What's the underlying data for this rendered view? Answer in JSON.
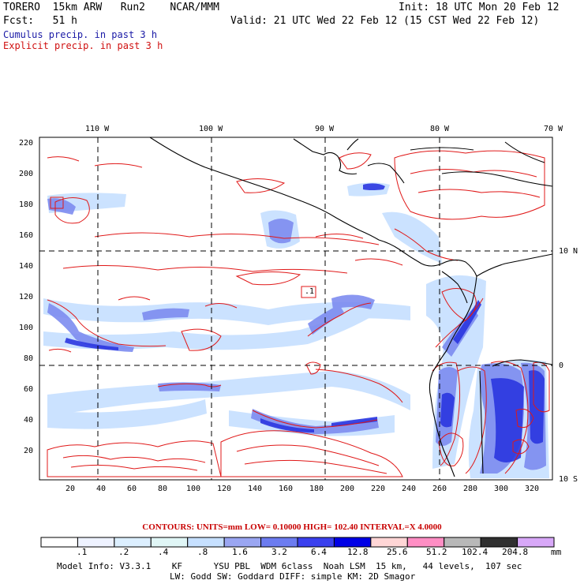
{
  "header": {
    "model_name": "TORERO  15km ARW   Run2    NCAR/MMM",
    "init_label": "Init: 18 UTC Mon 20 Feb 12",
    "forecast_label": "Fcst:   51 h",
    "valid_label": "Valid: 21 UTC Wed 22 Feb 12 (15 CST Wed 22 Feb 12)",
    "cumulus_legend": "Cumulus precip. in past 3 h",
    "explicit_legend": "Explicit precip. in past 3 h"
  },
  "map": {
    "top_lon_labels": [
      "110 W",
      "100 W",
      "90 W",
      "80 W",
      "70 W"
    ],
    "right_lat_labels": [
      "10 N",
      "0",
      "10 S"
    ],
    "left_grid_labels": [
      "220",
      "200",
      "180",
      "160",
      "140",
      "120",
      "100",
      "80",
      "60",
      "40",
      "20"
    ],
    "bottom_grid_labels": [
      "20",
      "40",
      "60",
      "80",
      "100",
      "120",
      "140",
      "160",
      "180",
      "200",
      "220",
      "240",
      "260",
      "280",
      "300",
      "320"
    ],
    "marker_label": ".1",
    "colors": {
      "precip_light": "#c9e1ff",
      "precip_mid": "#7d8cf0",
      "precip_heavy": "#2b36e0",
      "contour": "#e01818",
      "coast": "#000000"
    }
  },
  "colorbar": {
    "contours_text": "CONTOURS:  UNITS=mm  LOW= 0.10000     HIGH=  102.40     INTERVAL=X  4.0000",
    "labels": [
      ".1",
      ".2",
      ".4",
      ".8",
      "1.6",
      "3.2",
      "6.4",
      "12.8",
      "25.6",
      "51.2",
      "102.4",
      "204.8"
    ],
    "units": "mm",
    "colors": [
      "#ffffff",
      "#eef2ff",
      "#dcefff",
      "#e0f6f6",
      "#c6e0ff",
      "#9aa6f2",
      "#6c7cf0",
      "#3a40ee",
      "#0000e6",
      "#ffd6d6",
      "#ff8ec4",
      "#b8b8b8",
      "#303030",
      "#d8a8f8"
    ]
  },
  "footer": {
    "model_info_line1": "Model Info: V3.3.1    KF      YSU PBL  WDM 6class  Noah LSM  15 km,   44 levels,  107 sec",
    "model_info_line2": "LW: Godd SW: Goddard DIFF: simple KM: 2D Smagor"
  }
}
